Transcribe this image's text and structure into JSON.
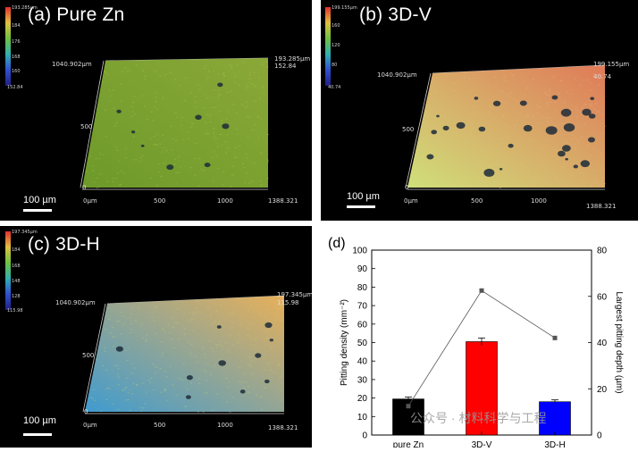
{
  "panels": [
    {
      "label": "(a) Pure Zn",
      "scale_bar": "100 µm",
      "colorbar_top": "193.285µm",
      "colorbar_ticks": [
        "184",
        "176",
        "168",
        "160"
      ],
      "colorbar_bottom": "152.84",
      "y_extent": "1040.902µm",
      "y_mid": "500",
      "y_zero": "0",
      "x_ticks": [
        "0µm",
        "500",
        "1000",
        "1388.321"
      ],
      "z_top": "193.285µm",
      "z_bottom": "152.84",
      "colors": {
        "left": "#6d9a2a",
        "right": "#8aa838",
        "noise": "#c3c84a"
      }
    },
    {
      "label": "(b) 3D-V",
      "scale_bar": "100 µm",
      "colorbar_top": "199.155µm",
      "colorbar_ticks": [
        "160",
        "120",
        "80"
      ],
      "colorbar_bottom": "40.74",
      "y_extent": "1040.902µm",
      "y_mid": "500",
      "y_zero": "0",
      "x_ticks": [
        "0µm",
        "500",
        "1000",
        "1388.321"
      ],
      "z_top": "199.155µm",
      "z_bottom": "40.74",
      "colors": {
        "left": "#cfe07a",
        "right": "#e07a58",
        "noise": "#e9c27a"
      }
    },
    {
      "label": "(c) 3D-H",
      "scale_bar": "100 µm",
      "colorbar_top": "197.345µm",
      "colorbar_ticks": [
        "184",
        "168",
        "148",
        "128"
      ],
      "colorbar_bottom": "115.98",
      "y_extent": "1040.902µm",
      "y_mid": "500",
      "y_zero": "0",
      "x_ticks": [
        "0µm",
        "500",
        "1000",
        "1388.321"
      ],
      "z_top": "197.345µm",
      "z_bottom": "115.98",
      "colors": {
        "left": "#3f9bd0",
        "right": "#e7b05a",
        "noise": "#cfd56a"
      }
    }
  ],
  "chart_data": {
    "label": "(d)",
    "type": "bar",
    "categories": [
      "pure Zn",
      "3D-V",
      "3D-H"
    ],
    "series": [
      {
        "values": [
          19.5,
          50.5,
          18.0
        ],
        "errors": [
          1.0,
          2.0,
          1.0
        ],
        "colors": [
          "#000000",
          "#ff0000",
          "#0000ff"
        ],
        "axis": "left"
      },
      {
        "type": "line",
        "values": [
          12.5,
          62.5,
          42.0
        ],
        "axis": "right",
        "color": "#555555"
      }
    ],
    "ylabel": "Pitting density (mm⁻²)",
    "y2label": "Largest pitting depth (µm)",
    "ylim": [
      0,
      100
    ],
    "y2lim": [
      0,
      80
    ],
    "yticks": [
      0,
      10,
      20,
      30,
      40,
      50,
      60,
      70,
      80,
      90,
      100
    ],
    "y2ticks": [
      0,
      20,
      40,
      60,
      80
    ]
  },
  "watermark": "公众号 · 材料科学与工程"
}
